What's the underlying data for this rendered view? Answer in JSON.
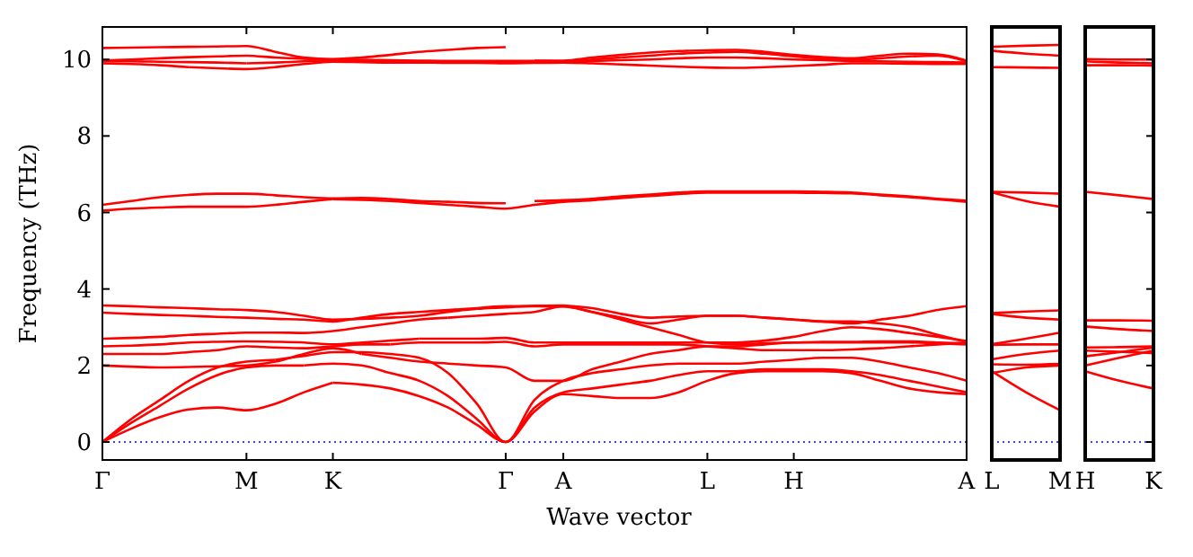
{
  "chart_data": [
    {
      "type": "line",
      "ylabel": "Frequency (THz)",
      "xlabel": "Wave vector",
      "ylim": [
        -0.47,
        10.85
      ],
      "categories": [
        "Γ",
        null,
        null,
        null,
        null,
        "M",
        null,
        null,
        "K",
        null,
        null,
        null,
        null,
        null,
        "Γ",
        null,
        "A",
        null,
        null,
        null,
        null,
        "L",
        null,
        null,
        "H",
        null,
        null,
        null,
        null,
        null,
        "A"
      ],
      "yticks": [
        0,
        2,
        4,
        6,
        8,
        10
      ],
      "ref_lines": [
        {
          "axis": "y",
          "value": 0,
          "color": "#0000ff",
          "line_style": "dotted"
        }
      ],
      "series": [
        {
          "color": "#ff0000",
          "values": [
            0,
            0.35,
            0.65,
            0.85,
            0.9,
            0.83,
            1.0,
            1.3,
            1.55,
            null,
            null,
            null,
            null,
            null,
            null,
            null,
            null,
            null,
            null,
            null,
            null,
            null,
            null,
            null,
            null,
            null,
            null,
            null,
            null,
            null,
            null
          ]
        },
        {
          "color": "#ff0000",
          "values": [
            null,
            null,
            null,
            null,
            null,
            null,
            null,
            null,
            1.55,
            1.5,
            1.4,
            1.2,
            0.9,
            0.45,
            0,
            0.8,
            1.25,
            1.2,
            1.15,
            1.15,
            1.3,
            1.6,
            1.8,
            1.85,
            1.85,
            1.85,
            1.8,
            1.6,
            1.4,
            1.3,
            1.25
          ]
        },
        {
          "color": "#ff0000",
          "values": [
            0,
            0.5,
            0.95,
            1.4,
            1.75,
            1.95,
            2.0,
            2.0,
            null,
            null,
            null,
            null,
            null,
            null,
            null,
            null,
            null,
            null,
            null,
            null,
            null,
            null,
            null,
            null,
            null,
            null,
            null,
            null,
            null,
            null,
            null
          ]
        },
        {
          "color": "#ff0000",
          "values": [
            null,
            null,
            null,
            null,
            null,
            null,
            null,
            2.0,
            2.05,
            2.0,
            1.8,
            1.6,
            1.2,
            0.6,
            0,
            0.9,
            1.3,
            1.4,
            1.5,
            1.6,
            1.75,
            1.85,
            1.85,
            1.9,
            1.9,
            1.9,
            1.85,
            1.75,
            1.6,
            1.45,
            1.3
          ]
        },
        {
          "color": "#ff0000",
          "values": [
            0,
            0.6,
            1.1,
            1.6,
            1.95,
            2.1,
            2.15,
            null,
            null,
            null,
            null,
            null,
            null,
            null,
            null,
            null,
            null,
            null,
            null,
            null,
            null,
            null,
            null,
            null,
            null,
            null,
            null,
            null,
            null,
            null,
            null
          ]
        },
        {
          "color": "#ff0000",
          "values": [
            null,
            null,
            null,
            null,
            null,
            null,
            2.15,
            2.25,
            2.35,
            2.35,
            2.3,
            2.2,
            1.8,
            1.0,
            0,
            1.1,
            1.6,
            1.8,
            1.9,
            2.0,
            2.05,
            2.05,
            2.05,
            2.1,
            2.15,
            2.2,
            2.2,
            2.1,
            1.95,
            1.8,
            1.6
          ]
        },
        {
          "color": "#ff0000",
          "values": [
            2.0,
            1.97,
            1.95,
            1.96,
            1.98,
            2.0,
            2.1,
            2.3,
            2.45,
            2.3,
            null,
            null,
            null,
            null,
            null,
            null,
            null,
            null,
            null,
            null,
            null,
            null,
            null,
            null,
            null,
            null,
            null,
            null,
            null,
            null,
            null
          ]
        },
        {
          "color": "#ff0000",
          "values": [
            null,
            null,
            null,
            null,
            null,
            null,
            null,
            null,
            null,
            2.3,
            2.2,
            2.1,
            2.05,
            2.0,
            1.95,
            1.6,
            1.6,
            1.9,
            2.1,
            2.3,
            2.4,
            2.5,
            2.5,
            2.55,
            2.6,
            2.6,
            2.6,
            2.6,
            2.6,
            2.58,
            2.55
          ]
        },
        {
          "color": "#ff0000",
          "values": [
            2.3,
            2.3,
            2.3,
            2.35,
            2.4,
            2.5,
            2.47,
            2.45,
            2.5,
            2.55,
            2.55,
            null,
            null,
            null,
            null,
            null,
            null,
            null,
            null,
            null,
            null,
            null,
            null,
            null,
            null,
            null,
            null,
            null,
            null,
            null,
            null
          ]
        },
        {
          "color": "#ff0000",
          "values": [
            null,
            null,
            null,
            null,
            null,
            null,
            null,
            null,
            null,
            null,
            2.55,
            2.6,
            2.6,
            2.6,
            2.62,
            2.5,
            2.55,
            2.55,
            2.55,
            2.55,
            2.55,
            2.5,
            2.45,
            2.4,
            2.4,
            2.4,
            2.42,
            2.45,
            2.5,
            2.55,
            2.6
          ]
        },
        {
          "color": "#ff0000",
          "values": [
            2.5,
            2.52,
            2.55,
            2.6,
            2.62,
            2.63,
            2.62,
            2.6,
            2.55,
            2.6,
            2.65,
            2.7,
            null,
            null,
            null,
            null,
            null,
            null,
            null,
            null,
            null,
            null,
            null,
            null,
            null,
            null,
            null,
            null,
            null,
            null,
            null
          ]
        },
        {
          "color": "#ff0000",
          "values": [
            null,
            null,
            null,
            null,
            null,
            null,
            null,
            null,
            null,
            null,
            null,
            2.7,
            2.7,
            2.7,
            2.72,
            2.6,
            2.6,
            2.6,
            2.6,
            2.6,
            2.6,
            2.6,
            2.6,
            2.65,
            2.75,
            2.9,
            3.0,
            2.95,
            2.85,
            2.75,
            2.64
          ]
        },
        {
          "color": "#ff0000",
          "values": [
            2.7,
            2.72,
            2.75,
            2.8,
            2.83,
            2.86,
            2.86,
            2.85,
            2.9,
            3.0,
            3.1,
            3.2,
            3.25,
            null,
            null,
            null,
            null,
            null,
            null,
            null,
            null,
            null,
            null,
            null,
            null,
            null,
            null,
            null,
            null,
            null,
            null
          ]
        },
        {
          "color": "#ff0000",
          "values": [
            null,
            null,
            null,
            null,
            null,
            null,
            null,
            null,
            null,
            null,
            null,
            null,
            3.25,
            3.3,
            3.35,
            3.4,
            3.55,
            3.4,
            3.2,
            3.0,
            2.8,
            2.6,
            2.55,
            2.58,
            2.6,
            2.62,
            2.62,
            2.63,
            2.63,
            2.6,
            2.57
          ]
        },
        {
          "color": "#ff0000",
          "values": [
            3.38,
            3.35,
            3.32,
            3.3,
            3.27,
            3.25,
            3.22,
            3.2,
            3.15,
            3.25,
            3.35,
            3.4,
            3.45,
            3.5,
            null,
            null,
            null,
            null,
            null,
            null,
            null,
            null,
            null,
            null,
            null,
            null,
            null,
            null,
            null,
            null,
            null
          ]
        },
        {
          "color": "#ff0000",
          "values": [
            null,
            null,
            null,
            null,
            null,
            null,
            null,
            null,
            null,
            null,
            null,
            null,
            null,
            3.5,
            3.55,
            3.55,
            3.54,
            3.4,
            3.25,
            3.1,
            3.2,
            3.3,
            3.3,
            3.25,
            3.2,
            3.15,
            3.1,
            3.2,
            3.3,
            3.45,
            3.55
          ]
        },
        {
          "color": "#ff0000",
          "values": [
            3.57,
            3.55,
            3.52,
            3.5,
            3.47,
            3.45,
            3.4,
            3.3,
            3.2,
            3.22,
            3.25,
            3.3,
            3.4,
            3.48,
            3.52,
            3.56,
            3.57,
            null,
            null,
            null,
            null,
            null,
            null,
            null,
            null,
            null,
            null,
            null,
            null,
            null,
            null
          ]
        },
        {
          "color": "#ff0000",
          "values": [
            null,
            null,
            null,
            null,
            null,
            null,
            null,
            null,
            null,
            null,
            null,
            null,
            null,
            null,
            null,
            null,
            3.57,
            3.5,
            3.35,
            3.25,
            3.28,
            3.3,
            3.3,
            3.25,
            3.2,
            3.15,
            3.15,
            3.1,
            3.0,
            2.8,
            2.61
          ]
        },
        {
          "color": "#ff0000",
          "values": [
            6.05,
            6.1,
            6.13,
            6.15,
            6.15,
            6.15,
            6.2,
            6.28,
            6.35,
            null,
            null,
            null,
            null,
            null,
            null,
            null,
            null,
            null,
            null,
            null,
            null,
            null,
            null,
            null,
            null,
            null,
            null,
            null,
            null,
            null,
            null
          ]
        },
        {
          "color": "#ff0000",
          "values": [
            null,
            null,
            null,
            null,
            null,
            null,
            null,
            null,
            6.35,
            6.33,
            6.3,
            6.25,
            6.2,
            6.15,
            6.1,
            6.2,
            6.28,
            6.32,
            6.38,
            6.43,
            6.48,
            6.52,
            6.52,
            6.52,
            6.52,
            6.51,
            6.5,
            6.45,
            6.4,
            6.34,
            6.28
          ]
        },
        {
          "color": "#ff0000",
          "values": [
            6.2,
            6.3,
            6.4,
            6.46,
            6.49,
            6.49,
            6.45,
            6.4,
            6.37,
            6.38,
            6.35,
            6.3,
            6.28,
            6.25,
            6.24,
            null,
            null,
            null,
            null,
            null,
            null,
            null,
            null,
            null,
            null,
            null,
            null,
            null,
            null,
            null,
            null
          ]
        },
        {
          "color": "#ff0000",
          "values": [
            null,
            null,
            null,
            null,
            null,
            null,
            null,
            null,
            null,
            null,
            null,
            null,
            null,
            null,
            null,
            6.3,
            6.32,
            6.36,
            6.42,
            6.47,
            6.52,
            6.55,
            6.55,
            6.55,
            6.55,
            6.54,
            6.52,
            6.47,
            6.42,
            6.36,
            6.31
          ]
        },
        {
          "color": "#ff0000",
          "values": [
            9.9,
            9.88,
            9.85,
            9.8,
            null,
            null,
            null,
            null,
            null,
            null,
            null,
            null,
            null,
            null,
            null,
            null,
            null,
            null,
            null,
            null,
            null,
            null,
            null,
            null,
            null,
            null,
            null,
            null,
            null,
            null,
            null
          ]
        },
        {
          "color": "#ff0000",
          "values": [
            null,
            null,
            null,
            9.8,
            9.77,
            9.75,
            9.8,
            9.88,
            9.94,
            9.93,
            9.92,
            9.92,
            9.91,
            9.91,
            9.9,
            9.91,
            9.92,
            9.9,
            9.87,
            9.84,
            9.81,
            9.79,
            9.78,
            9.8,
            9.83,
            9.86,
            9.9,
            9.9,
            9.89,
            9.88,
            9.88
          ]
        },
        {
          "color": "#ff0000",
          "values": [
            9.95,
            9.95,
            9.94,
            9.93,
            9.92,
            9.9,
            null,
            null,
            null,
            null,
            null,
            null,
            null,
            null,
            null,
            null,
            null,
            null,
            null,
            null,
            null,
            null,
            null,
            null,
            null,
            null,
            null,
            null,
            null,
            null,
            null
          ]
        },
        {
          "color": "#ff0000",
          "values": [
            null,
            null,
            null,
            null,
            null,
            9.9,
            9.92,
            9.95,
            9.97,
            9.96,
            9.95,
            9.95,
            9.94,
            9.94,
            9.93,
            9.94,
            9.94,
            9.96,
            9.98,
            10.0,
            10.03,
            10.05,
            10.05,
            10.03,
            10.0,
            9.98,
            9.96,
            9.95,
            9.94,
            9.93,
            9.92
          ]
        },
        {
          "color": "#ff0000",
          "values": [
            9.97,
            10.0,
            10.03,
            10.06,
            10.08,
            10.1,
            10.05,
            10.02,
            9.99,
            9.99,
            9.98,
            9.97,
            9.96,
            9.96,
            9.96,
            9.96,
            9.95,
            10.0,
            10.05,
            null,
            null,
            null,
            null,
            null,
            null,
            null,
            null,
            null,
            null,
            null,
            null
          ]
        },
        {
          "color": "#ff0000",
          "values": [
            null,
            null,
            null,
            null,
            null,
            null,
            null,
            null,
            null,
            null,
            null,
            null,
            null,
            null,
            null,
            null,
            null,
            null,
            10.05,
            10.1,
            10.15,
            10.18,
            10.2,
            10.15,
            10.08,
            10.02,
            9.99,
            10.03,
            10.08,
            10.1,
            9.95
          ]
        },
        {
          "color": "#ff0000",
          "values": [
            10.3,
            10.31,
            10.32,
            10.33,
            10.34,
            10.35,
            10.2,
            10.05,
            10.01,
            10.05,
            10.12,
            10.2,
            10.25,
            10.3,
            10.32,
            null,
            null,
            null,
            null,
            null,
            null,
            null,
            null,
            null,
            null,
            null,
            null,
            null,
            null,
            null,
            null
          ]
        },
        {
          "color": "#ff0000",
          "values": [
            null,
            null,
            null,
            null,
            null,
            null,
            null,
            null,
            null,
            null,
            null,
            null,
            null,
            null,
            null,
            9.97,
            9.97,
            10.05,
            10.12,
            10.18,
            10.22,
            10.24,
            10.25,
            10.2,
            10.12,
            10.06,
            10.03,
            10.1,
            10.15,
            10.13,
            9.97
          ]
        }
      ]
    },
    {
      "type": "line",
      "tick_labels": "x",
      "ylim": [
        -0.47,
        10.85
      ],
      "categories": [
        "L",
        null,
        "M"
      ],
      "yticks": [
        0,
        2,
        4,
        6,
        8,
        10
      ],
      "ref_lines": [
        {
          "axis": "y",
          "value": 0,
          "color": "#0000ff",
          "line_style": "dotted"
        }
      ],
      "series": [
        {
          "color": "#ff0000",
          "values": [
            10.33,
            10.36,
            10.38
          ]
        },
        {
          "color": "#ff0000",
          "values": [
            10.23,
            10.15,
            10.1
          ]
        },
        {
          "color": "#ff0000",
          "values": [
            9.8,
            9.79,
            9.78
          ]
        },
        {
          "color": "#ff0000",
          "values": [
            6.54,
            6.52,
            6.49
          ]
        },
        {
          "color": "#ff0000",
          "values": [
            6.53,
            6.3,
            6.15
          ]
        },
        {
          "color": "#ff0000",
          "values": [
            3.37,
            3.41,
            3.44
          ]
        },
        {
          "color": "#ff0000",
          "values": [
            3.35,
            3.25,
            3.2
          ]
        },
        {
          "color": "#ff0000",
          "values": [
            2.56,
            2.7,
            2.86
          ]
        },
        {
          "color": "#ff0000",
          "values": [
            2.54,
            2.55,
            2.55
          ]
        },
        {
          "color": "#ff0000",
          "values": [
            2.16,
            2.3,
            2.39
          ]
        },
        {
          "color": "#ff0000",
          "values": [
            2.03,
            2.02,
            2.04
          ]
        },
        {
          "color": "#ff0000",
          "values": [
            1.85,
            1.3,
            0.83
          ]
        },
        {
          "color": "#ff0000",
          "values": [
            1.8,
            1.95,
            2.0
          ]
        }
      ]
    },
    {
      "type": "line",
      "tick_labels": "x",
      "ylim": [
        -0.47,
        10.85
      ],
      "categories": [
        "H",
        null,
        "K"
      ],
      "yticks": [
        0,
        2,
        4,
        6,
        8,
        10
      ],
      "ref_lines": [
        {
          "axis": "y",
          "value": 0,
          "color": "#0000ff",
          "line_style": "dotted"
        }
      ],
      "series": [
        {
          "color": "#ff0000",
          "values": [
            10.01,
            10.0,
            10.0
          ]
        },
        {
          "color": "#ff0000",
          "values": [
            9.95,
            9.92,
            9.9
          ]
        },
        {
          "color": "#ff0000",
          "values": [
            9.85,
            9.85,
            9.84
          ]
        },
        {
          "color": "#ff0000",
          "values": [
            6.54,
            6.45,
            6.35
          ]
        },
        {
          "color": "#ff0000",
          "values": [
            3.18,
            3.18,
            3.17
          ]
        },
        {
          "color": "#ff0000",
          "values": [
            3.02,
            2.95,
            2.9
          ]
        },
        {
          "color": "#ff0000",
          "values": [
            2.47,
            2.48,
            2.5
          ]
        },
        {
          "color": "#ff0000",
          "values": [
            2.39,
            2.36,
            2.32
          ]
        },
        {
          "color": "#ff0000",
          "values": [
            2.24,
            2.35,
            2.47
          ]
        },
        {
          "color": "#ff0000",
          "values": [
            2.0,
            2.2,
            2.39
          ]
        },
        {
          "color": "#ff0000",
          "values": [
            1.85,
            1.6,
            1.4
          ]
        }
      ]
    }
  ]
}
